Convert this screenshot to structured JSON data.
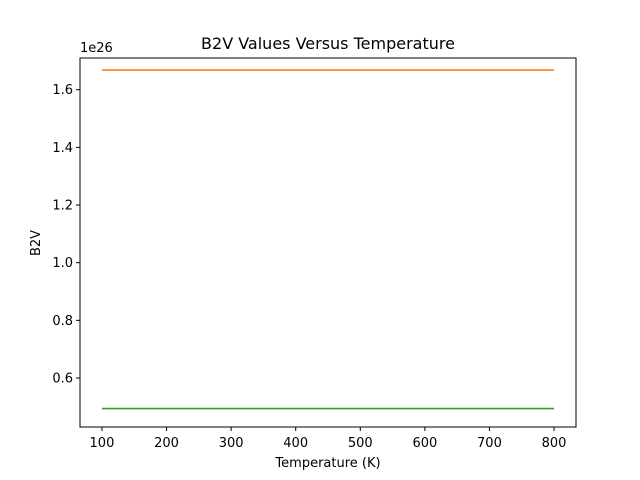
{
  "chart_data": {
    "type": "line",
    "title": "B2V Values Versus Temperature",
    "xlabel": "Temperature (K)",
    "ylabel": "B2V",
    "offset_label": "1e26",
    "xlim": [
      66,
      834
    ],
    "ylim": [
      0.43,
      1.71
    ],
    "xticks": [
      100,
      200,
      300,
      400,
      500,
      600,
      700,
      800
    ],
    "yticks": [
      0.6,
      0.8,
      1.0,
      1.2,
      1.4,
      1.6
    ],
    "ytick_labels": [
      "0.6",
      "0.8",
      "1.0",
      "1.2",
      "1.4",
      "1.6"
    ],
    "grid": false,
    "series": [
      {
        "color": "#ff7f0e",
        "x": [
          100,
          800
        ],
        "y": [
          1.668,
          1.668
        ]
      },
      {
        "color": "#2ca02c",
        "x": [
          100,
          800
        ],
        "y": [
          0.494,
          0.494
        ]
      }
    ]
  }
}
